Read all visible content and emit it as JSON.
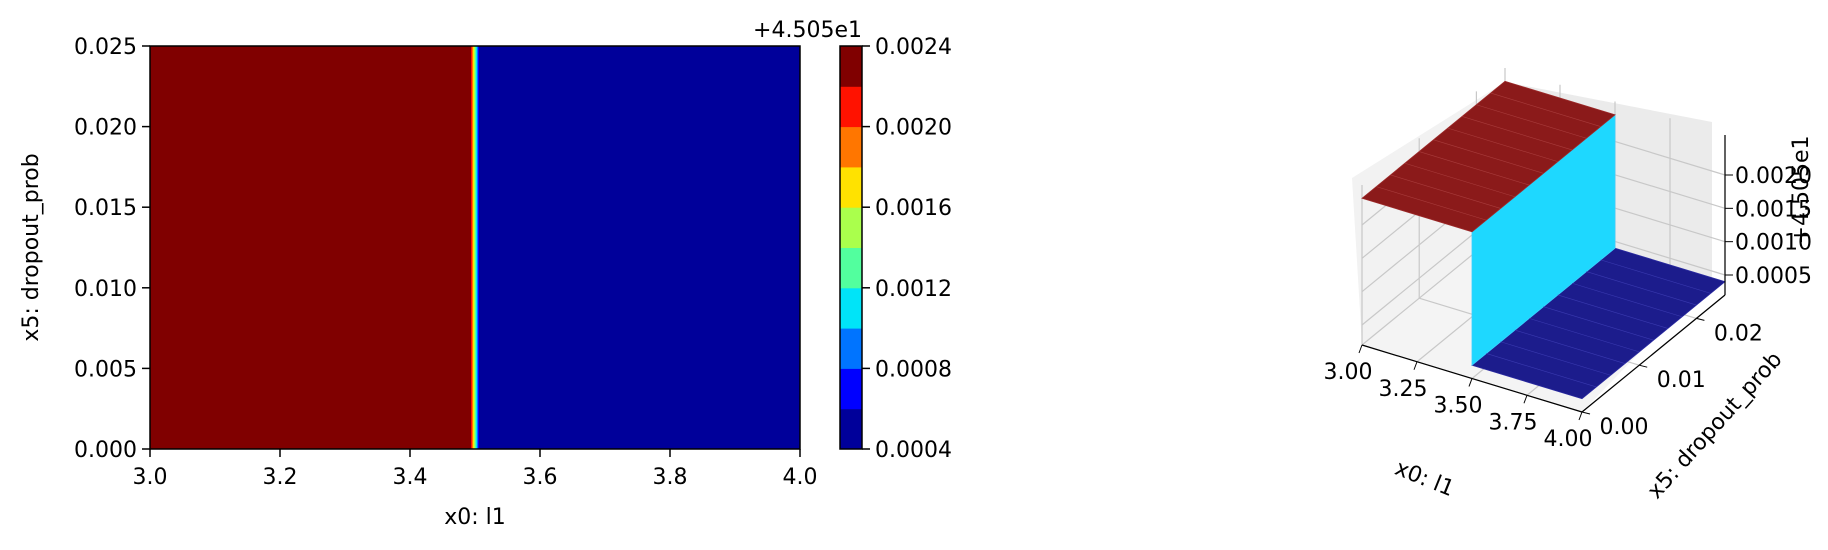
{
  "chart_data": [
    {
      "type": "heatmap",
      "title": "",
      "xlabel": "x0: l1",
      "ylabel": "x5: dropout_prob",
      "xlim": [
        3.0,
        4.0
      ],
      "ylim": [
        0.0,
        0.025
      ],
      "x_ticks": [
        "3.0",
        "3.2",
        "3.4",
        "3.6",
        "3.8",
        "4.0"
      ],
      "y_ticks": [
        "0.000",
        "0.005",
        "0.010",
        "0.015",
        "0.020",
        "0.025"
      ],
      "transition_x": 3.5,
      "value_left_of_transition": 0.0024,
      "value_right_of_transition": 0.0004,
      "colormap": "jet",
      "colorbar": {
        "offset_label": "+4.505e1",
        "ticks": [
          "0.0004",
          "0.0008",
          "0.0012",
          "0.0016",
          "0.0020",
          "0.0024"
        ],
        "range": [
          0.0004,
          0.0024
        ],
        "levels": [
          0.0004,
          0.0006,
          0.0008,
          0.001,
          0.0012,
          0.0014,
          0.0016,
          0.0018,
          0.002,
          0.0022,
          0.0024
        ],
        "level_colors": [
          "#00009a",
          "#0000ff",
          "#0074ff",
          "#00e4f8",
          "#52ff9e",
          "#aaff4c",
          "#ffe200",
          "#ff7600",
          "#ff1200",
          "#800000"
        ]
      }
    },
    {
      "type": "surface3d",
      "title": "",
      "xlabel": "x0: l1",
      "ylabel": "x5: dropout_prob",
      "zlabel": "+4.505e1",
      "xlim": [
        3.0,
        4.0
      ],
      "ylim": [
        0.0,
        0.025
      ],
      "x_ticks": [
        "3.00",
        "3.25",
        "3.50",
        "3.75",
        "4.00"
      ],
      "y_ticks": [
        "0.00",
        "0.01",
        "0.02"
      ],
      "z_ticks": [
        "0.0005",
        "0.0010",
        "0.0015",
        "0.0020"
      ],
      "transition_x": 3.5,
      "z_left": 0.0024,
      "z_right": 0.0004,
      "colors": {
        "high": "#8b1a1a",
        "step": "#1ed8ff",
        "low": "#1c1c8c"
      }
    }
  ]
}
